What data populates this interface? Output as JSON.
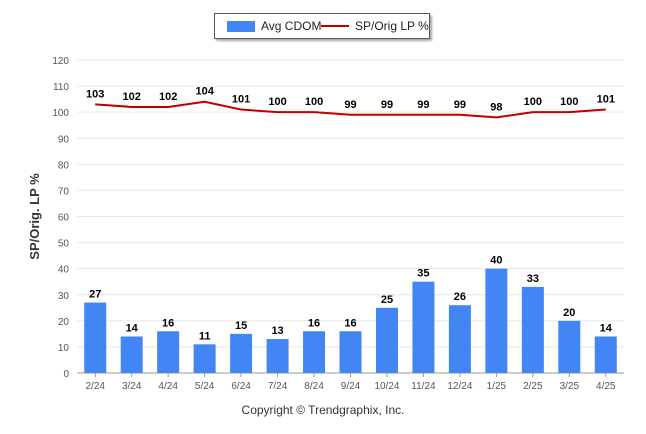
{
  "legend": {
    "bar_label": "Avg CDOM",
    "line_label": "SP/Orig LP %"
  },
  "footer": {
    "copyright": "Copyright © Trendgraphix, Inc."
  },
  "colors": {
    "bar": "#4285f4",
    "line": "#c00000",
    "grid": "#e6e6e6",
    "axis_text": "#555555"
  },
  "chart_data": {
    "type": "bar",
    "title": "",
    "xlabel": "",
    "ylabel": "SP/Orig. LP %",
    "ylim": [
      0,
      120
    ],
    "yticks": [
      0,
      10,
      20,
      30,
      40,
      50,
      60,
      70,
      80,
      90,
      100,
      110,
      120
    ],
    "grid": true,
    "legend_position": "top-center",
    "categories": [
      "2/24",
      "3/24",
      "4/24",
      "5/24",
      "6/24",
      "7/24",
      "8/24",
      "9/24",
      "10/24",
      "11/24",
      "12/24",
      "1/25",
      "2/25",
      "3/25",
      "4/25"
    ],
    "series": [
      {
        "name": "Avg CDOM",
        "type": "bar",
        "values": [
          27,
          14,
          16,
          11,
          15,
          13,
          16,
          16,
          25,
          35,
          26,
          40,
          33,
          20,
          14
        ]
      },
      {
        "name": "SP/Orig LP %",
        "type": "line",
        "values": [
          103,
          102,
          102,
          104,
          101,
          100,
          100,
          99,
          99,
          99,
          99,
          98,
          100,
          100,
          101
        ]
      }
    ]
  }
}
